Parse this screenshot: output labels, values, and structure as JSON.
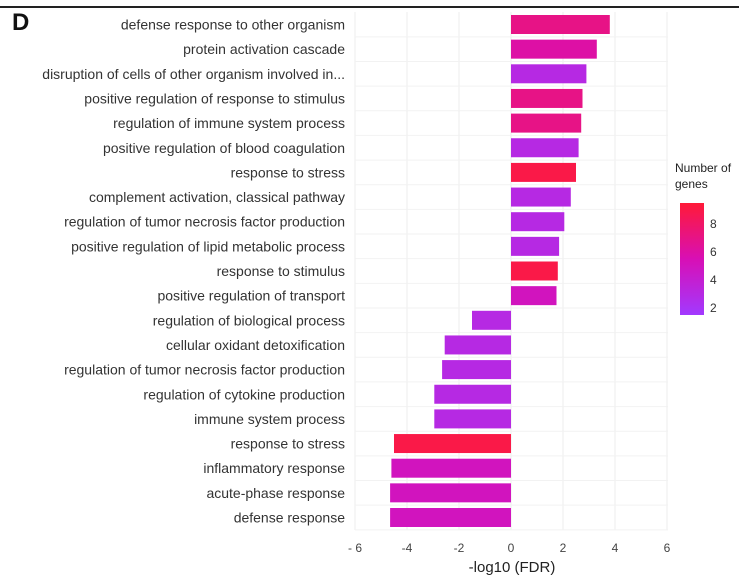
{
  "panel_label": "D",
  "chart_data": {
    "type": "bar",
    "orientation": "horizontal",
    "categories": [
      "defense response to other organism",
      "protein activation cascade",
      "disruption of cells of other organism involved in...",
      "positive regulation of response to stimulus",
      "regulation of immune system process",
      "positive regulation of blood coagulation",
      "response to stress",
      "complement activation, classical pathway",
      "regulation of tumor necrosis factor production",
      "positive regulation of lipid metabolic process",
      "response to stimulus",
      "positive regulation of transport",
      "regulation of biological process",
      "cellular oxidant detoxification",
      "regulation of tumor necrosis factor production",
      "regulation of cytokine production",
      "immune system process",
      "response to stress",
      "inflammatory response",
      "acute-phase response",
      "defense response"
    ],
    "values": [
      3.8,
      3.3,
      2.9,
      2.75,
      2.7,
      2.6,
      2.5,
      2.3,
      2.05,
      1.85,
      1.8,
      1.75,
      -1.5,
      -2.55,
      -2.65,
      -2.95,
      -2.95,
      -4.5,
      -4.6,
      -4.65,
      -4.65
    ],
    "gene_counts": [
      7,
      6,
      3,
      7,
      7,
      3,
      9,
      3,
      3,
      3,
      9,
      5,
      3,
      3,
      3,
      3,
      3,
      9,
      5,
      5,
      5
    ],
    "xlabel": "-log10 (FDR)",
    "ylabel": "",
    "xlim": [
      -6,
      6
    ],
    "xticks": [
      "- 6",
      "-4",
      "-2",
      "0",
      "2",
      "4",
      "6"
    ],
    "xtick_values": [
      -6,
      -4,
      -2,
      0,
      2,
      4,
      6
    ],
    "grid": true,
    "legend": {
      "title": "Number of genes",
      "ticks": [
        "8",
        "6",
        "4",
        "2"
      ],
      "tick_values": [
        8,
        6,
        4,
        2
      ],
      "range": [
        1.5,
        9.5
      ],
      "color_low": "#a239ff",
      "color_mid": "#d80fb5",
      "color_high": "#ff1a38",
      "placement": "right"
    }
  }
}
